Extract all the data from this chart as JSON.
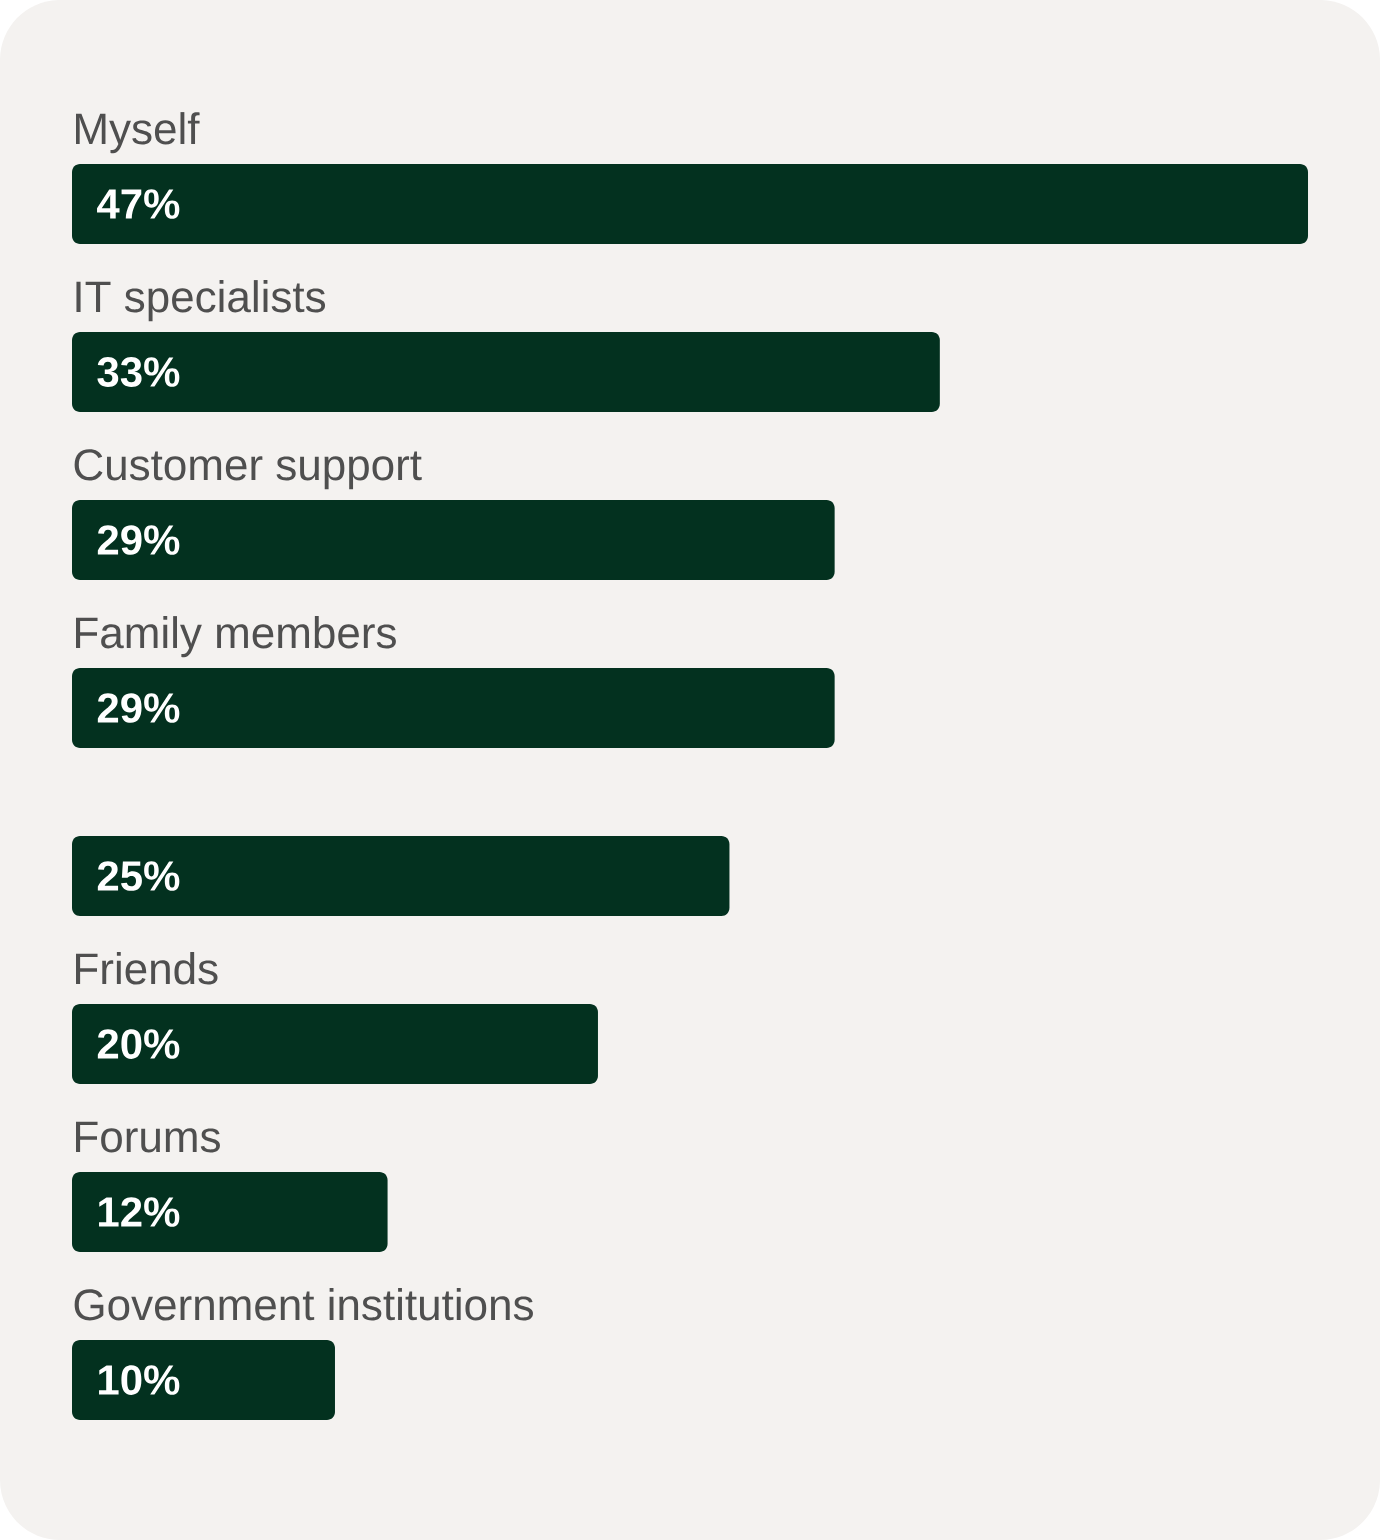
{
  "chart_data": {
    "type": "bar",
    "orientation": "horizontal",
    "categories": [
      "Myself",
      "IT specialists",
      "Customer support",
      "Family members",
      null,
      "Friends",
      "Forums",
      "Government institutions"
    ],
    "values": [
      47,
      33,
      29,
      29,
      25,
      20,
      12,
      10
    ],
    "color": "#03311f",
    "value_labels": [
      "47%",
      "33%",
      "29%",
      "29%",
      "25%",
      "20%",
      "12%",
      "10%"
    ]
  }
}
